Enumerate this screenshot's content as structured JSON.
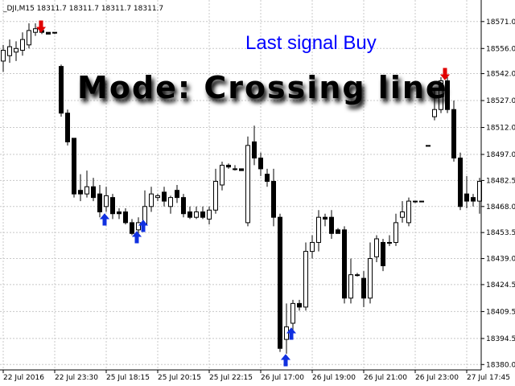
{
  "chart_data": {
    "type": "candlestick",
    "title": "_DJI,M15  18311.7 18311.7 18311.7 18311.7",
    "annotations": [
      "Last signal Buy",
      "Mode: Crossing line"
    ],
    "x": [
      "22 Jul 2016",
      null,
      null,
      null,
      null,
      null,
      null,
      null,
      "22 Jul 23:30",
      null,
      null,
      null,
      null,
      null,
      null,
      null,
      "25 Jul 18:15",
      null,
      null,
      null,
      null,
      null,
      null,
      null,
      "25 Jul 20:15",
      null,
      null,
      null,
      null,
      null,
      null,
      null,
      "25 Jul 22:15",
      null,
      null,
      null,
      null,
      null,
      null,
      null,
      "26 Jul 17:00",
      null,
      null,
      null,
      null,
      null,
      null,
      null,
      "26 Jul 19:00",
      null,
      null,
      null,
      null,
      null,
      null,
      null,
      "26 Jul 21:00",
      null,
      null,
      null,
      null,
      null,
      null,
      null,
      "26 Jul 23:00",
      null,
      null,
      null,
      null,
      null,
      null,
      null,
      "27 Jul 17:45",
      null,
      null
    ],
    "open": [
      18549,
      18552,
      18554,
      18555,
      18558,
      18565,
      18566,
      18565,
      18565,
      18546,
      18520,
      18506,
      18477,
      18475,
      18479,
      18475,
      18468,
      18473,
      18465,
      18465,
      18459,
      18455,
      18458,
      18468,
      18473,
      18476,
      18468,
      18477,
      18473,
      18465,
      18462,
      18465,
      18461,
      18466,
      18480,
      18491,
      18489,
      18489,
      18459,
      18504,
      18495,
      18486,
      18482,
      18462,
      18394,
      18403,
      18414,
      18412,
      18443,
      18448,
      18462,
      18462,
      18455,
      18455,
      18417,
      18430,
      18428,
      18417,
      18440,
      18448,
      18448,
      18448,
      18462,
      18459,
      18471,
      18471,
      18502,
      18518,
      18522,
      18538,
      18522,
      18495,
      18475,
      18473,
      18471
    ],
    "high": [
      18558,
      18561,
      18560,
      18565,
      18570,
      18570,
      18570,
      18565,
      18565,
      18547,
      18522,
      18506,
      18486,
      18488,
      18484,
      18480,
      18479,
      18475,
      18467,
      18467,
      18461,
      18462,
      18477,
      18479,
      18475,
      18479,
      18474,
      18480,
      18475,
      18468,
      18468,
      18468,
      18468,
      18489,
      18493,
      18492,
      18491,
      18489,
      18507,
      18513,
      18498,
      18489,
      18489,
      18464,
      18414,
      18416,
      18416,
      18448,
      18452,
      18466,
      18464,
      18466,
      18456,
      18457,
      18439,
      18431,
      18432,
      18448,
      18452,
      18450,
      18452,
      18464,
      18471,
      18473,
      18471,
      18471,
      18502,
      18534,
      18540,
      18540,
      18527,
      18498,
      18485,
      18475,
      18484
    ],
    "low": [
      18543,
      18548,
      18549,
      18552,
      18556,
      18563,
      18564,
      18564,
      18564,
      18518,
      18502,
      18473,
      18471,
      18473,
      18471,
      18462,
      18465,
      18461,
      18461,
      18458,
      18452,
      18452,
      18456,
      18465,
      18471,
      18468,
      18464,
      18470,
      18462,
      18461,
      18461,
      18461,
      18458,
      18464,
      18477,
      18489,
      18488,
      18488,
      18457,
      18491,
      18485,
      18479,
      18457,
      18387,
      18386,
      18398,
      18410,
      18410,
      18439,
      18443,
      18457,
      18450,
      18453,
      18414,
      18414,
      18429,
      18412,
      18414,
      18437,
      18432,
      18446,
      18446,
      18459,
      18457,
      18470,
      18471,
      18502,
      18516,
      18520,
      18520,
      18493,
      18466,
      18467,
      18468,
      18464
    ],
    "close": [
      18555,
      18557,
      18556,
      18561,
      18566,
      18567,
      18565,
      18564,
      18565,
      18520,
      18504,
      18475,
      18475,
      18479,
      18473,
      18465,
      18474,
      18464,
      18464,
      18459,
      18453,
      18459,
      18468,
      18475,
      18474,
      18471,
      18473,
      18473,
      18464,
      18462,
      18465,
      18462,
      18466,
      18482,
      18491,
      18490,
      18489,
      18488,
      18502,
      18495,
      18489,
      18482,
      18462,
      18389,
      18401,
      18414,
      18412,
      18443,
      18448,
      18462,
      18461,
      18453,
      18453,
      18417,
      18430,
      18430,
      18417,
      18439,
      18450,
      18435,
      18448,
      18459,
      18465,
      18471,
      18471,
      18471,
      18502,
      18522,
      18538,
      18522,
      18495,
      18468,
      18471,
      18471,
      18482
    ],
    "ylim": [
      18377,
      18583
    ],
    "yticks": [
      {
        "value": 18571,
        "label": "18571.0"
      },
      {
        "value": 18556,
        "label": "18556.0"
      },
      {
        "value": 18542,
        "label": "18542.0"
      },
      {
        "value": 18527,
        "label": "18527.0"
      },
      {
        "value": 18512,
        "label": "18512.0"
      },
      {
        "value": 18497,
        "label": "18497.0"
      },
      {
        "value": 18482.5,
        "label": "18482.5"
      },
      {
        "value": 18468,
        "label": "18468.0"
      },
      {
        "value": 18453.5,
        "label": "18453.5"
      },
      {
        "value": 18439,
        "label": "18439.0"
      },
      {
        "value": 18424.5,
        "label": "18424.5"
      },
      {
        "value": 18409.5,
        "label": "18409.5"
      },
      {
        "value": 18394.5,
        "label": "18394.5"
      },
      {
        "value": 18380,
        "label": "18380.0"
      }
    ],
    "grid": true,
    "up_color": "#ffffff",
    "down_color": "#000000"
  }
}
